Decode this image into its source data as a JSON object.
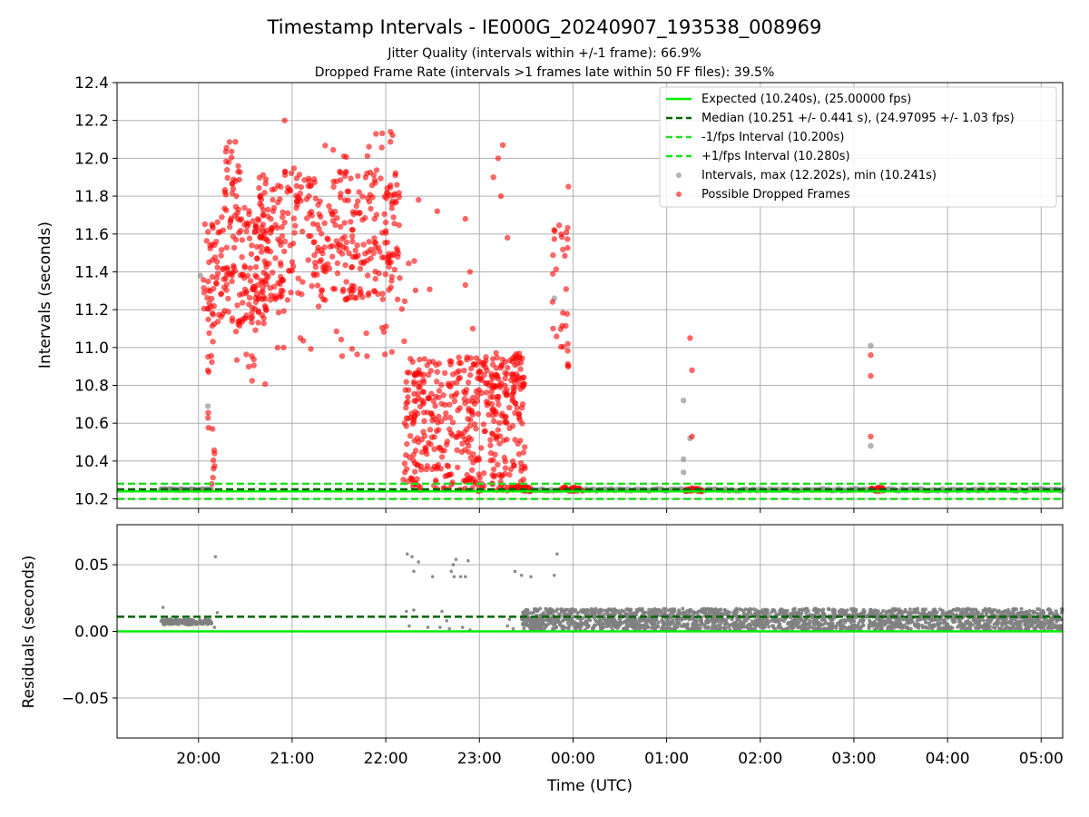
{
  "title": "Timestamp Intervals - IE000G_20240907_193538_008969",
  "subtitle_1": "Jitter Quality (intervals within +/-1 frame): 66.9%",
  "subtitle_2": "Dropped Frame Rate (intervals >1 frames late within 50 FF files): 39.5%",
  "colors": {
    "expected": "#00ee00",
    "median": "#006400",
    "fps_interval": "#22dd22",
    "intervals": "#808080",
    "dropped": "#ff0000",
    "grid": "#b0b0b0"
  },
  "chart_data": [
    {
      "type": "scatter",
      "name": "intervals",
      "ylabel": "Intervals (seconds)",
      "ylim": [
        10.15,
        12.4
      ],
      "yticks": [
        10.2,
        10.4,
        10.6,
        10.8,
        11.0,
        11.2,
        11.4,
        11.6,
        11.8,
        12.0,
        12.2,
        12.4
      ],
      "ytick_labels": [
        "10.2",
        "10.4",
        "10.6",
        "10.8",
        "11.0",
        "11.2",
        "11.4",
        "11.6",
        "11.8",
        "12.0",
        "12.2",
        "12.4"
      ],
      "xlim_hours": [
        19.13,
        29.23
      ],
      "grid": true,
      "legend_position": "upper-right",
      "reference_lines": {
        "expected": 10.24,
        "median": 10.251,
        "minus_fps": 10.2,
        "plus_fps": 10.28
      },
      "legend": [
        "Expected (10.240s), (25.00000 fps)",
        "Median (10.251 +/- 0.441 s), (24.97095 +/- 1.03 fps)",
        "-1/fps Interval (10.200s)",
        "+1/fps Interval (10.280s)",
        "Intervals, max (12.202s), min (10.241s)",
        "Possible Dropped Frames"
      ],
      "intervals_max": 12.202,
      "intervals_min": 10.241,
      "gray_highlights": [
        [
          19.6,
          10.25
        ],
        [
          20.02,
          11.38
        ],
        [
          20.1,
          10.69
        ],
        [
          23.46,
          10.26
        ],
        [
          23.8,
          11.26
        ],
        [
          25.18,
          10.72
        ],
        [
          25.18,
          10.41
        ],
        [
          25.18,
          10.34
        ],
        [
          25.25,
          10.52
        ],
        [
          27.18,
          11.01
        ],
        [
          27.18,
          10.48
        ]
      ],
      "dropped_clusters": [
        {
          "t": [
            20.05,
            20.75
          ],
          "v": [
            11.12,
            11.75
          ],
          "n": 180,
          "tail": [
            20.4,
            20.75
          ],
          "tail_v": [
            10.8,
            11.4
          ],
          "tail_n": 18
        },
        {
          "t": [
            20.1,
            20.18
          ],
          "v": [
            10.24,
            11.45
          ],
          "n": 22
        },
        {
          "t": [
            20.28,
            20.45
          ],
          "v": [
            11.8,
            12.12
          ],
          "n": 24
        },
        {
          "t": [
            20.6,
            22.15
          ],
          "v": [
            11.25,
            11.95
          ],
          "n": 360
        },
        {
          "t": [
            20.65,
            22.15
          ],
          "v": [
            10.95,
            11.3
          ],
          "n": 28
        },
        {
          "t": [
            21.3,
            22.1
          ],
          "v": [
            11.9,
            12.14
          ],
          "n": 14
        },
        {
          "t": [
            22.15,
            22.5
          ],
          "v": [
            10.3,
            11.5
          ],
          "n": 20
        },
        {
          "t": [
            22.2,
            23.5
          ],
          "v": [
            10.3,
            10.95
          ],
          "n": 360
        },
        {
          "t": [
            22.2,
            23.5
          ],
          "v": [
            10.24,
            10.3
          ],
          "n": 60
        },
        {
          "t": [
            22.95,
            23.45
          ],
          "v": [
            10.6,
            10.98
          ],
          "n": 60
        },
        {
          "t": [
            23.35,
            23.55
          ],
          "v": [
            10.24,
            10.27
          ],
          "n": 30
        },
        {
          "t": [
            23.78,
            23.95
          ],
          "v": [
            10.9,
            11.68
          ],
          "n": 30
        },
        {
          "t": [
            23.85,
            24.1
          ],
          "v": [
            10.24,
            10.26
          ],
          "n": 30
        },
        {
          "t": [
            25.2,
            25.38
          ],
          "v": [
            10.24,
            10.26
          ],
          "n": 24
        },
        {
          "t": [
            27.18,
            27.32
          ],
          "v": [
            10.24,
            10.26
          ],
          "n": 24
        }
      ],
      "dropped_points": [
        [
          20.92,
          12.2
        ],
        [
          22.05,
          12.14
        ],
        [
          23.2,
          12.0
        ],
        [
          23.15,
          11.9
        ],
        [
          22.35,
          11.78
        ],
        [
          22.55,
          11.72
        ],
        [
          22.85,
          11.68
        ],
        [
          22.9,
          11.4
        ],
        [
          22.85,
          11.33
        ],
        [
          23.3,
          11.58
        ],
        [
          23.23,
          11.8
        ],
        [
          23.25,
          12.07
        ],
        [
          22.87,
          10.5
        ],
        [
          22.93,
          11.1
        ],
        [
          23.95,
          11.85
        ],
        [
          23.95,
          10.9
        ],
        [
          25.25,
          11.05
        ],
        [
          25.27,
          10.88
        ],
        [
          25.27,
          10.53
        ],
        [
          27.18,
          10.96
        ],
        [
          27.18,
          10.85
        ],
        [
          27.18,
          10.53
        ],
        [
          20.1,
          10.88
        ],
        [
          20.15,
          10.57
        ],
        [
          20.16,
          10.36
        ]
      ]
    },
    {
      "type": "scatter",
      "name": "residuals",
      "ylabel": "Residuals (seconds)",
      "xlabel": "Time (UTC)",
      "ylim": [
        -0.08,
        0.08
      ],
      "yticks": [
        -0.05,
        0.0,
        0.05
      ],
      "ytick_labels": [
        "−0.05",
        "0.00",
        "0.05"
      ],
      "xlim_hours": [
        19.13,
        29.23
      ],
      "xticks_hours": [
        20,
        21,
        22,
        23,
        24,
        25,
        26,
        27,
        28,
        29
      ],
      "xtick_labels": [
        "20:00",
        "21:00",
        "22:00",
        "23:00",
        "00:00",
        "01:00",
        "02:00",
        "03:00",
        "04:00",
        "05:00"
      ],
      "grid": true,
      "reference_lines": {
        "expected": 0.0,
        "median": 0.011
      },
      "early_band": {
        "t": [
          19.6,
          20.15
        ],
        "v": [
          0.005,
          0.009
        ],
        "n": 140
      },
      "dense_band": {
        "t": [
          23.45,
          29.23
        ],
        "v": [
          0.001,
          0.017
        ],
        "n": 2200
      },
      "scattered": [
        [
          19.62,
          0.018
        ],
        [
          20.18,
          0.056
        ],
        [
          20.2,
          0.014
        ],
        [
          20.17,
          0.003
        ],
        [
          22.23,
          0.058
        ],
        [
          22.28,
          0.056
        ],
        [
          22.3,
          0.045
        ],
        [
          22.35,
          0.052
        ],
        [
          22.5,
          0.041
        ],
        [
          22.7,
          0.045
        ],
        [
          22.72,
          0.05
        ],
        [
          22.75,
          0.054
        ],
        [
          22.73,
          0.041
        ],
        [
          22.8,
          0.041
        ],
        [
          22.85,
          0.041
        ],
        [
          22.88,
          0.053
        ],
        [
          22.22,
          0.015
        ],
        [
          22.3,
          0.016
        ],
        [
          22.25,
          0.004
        ],
        [
          22.6,
          0.015
        ],
        [
          22.65,
          0.008
        ],
        [
          22.45,
          0.003
        ],
        [
          22.58,
          0.003
        ],
        [
          22.68,
          0.002
        ],
        [
          22.82,
          0.003
        ],
        [
          22.9,
          0.001
        ],
        [
          23.38,
          0.045
        ],
        [
          23.45,
          0.042
        ],
        [
          23.55,
          0.041
        ],
        [
          23.83,
          0.058
        ],
        [
          23.8,
          0.042
        ],
        [
          23.3,
          0.004
        ],
        [
          23.32,
          0.009
        ],
        [
          23.36,
          0.002
        ]
      ]
    }
  ]
}
